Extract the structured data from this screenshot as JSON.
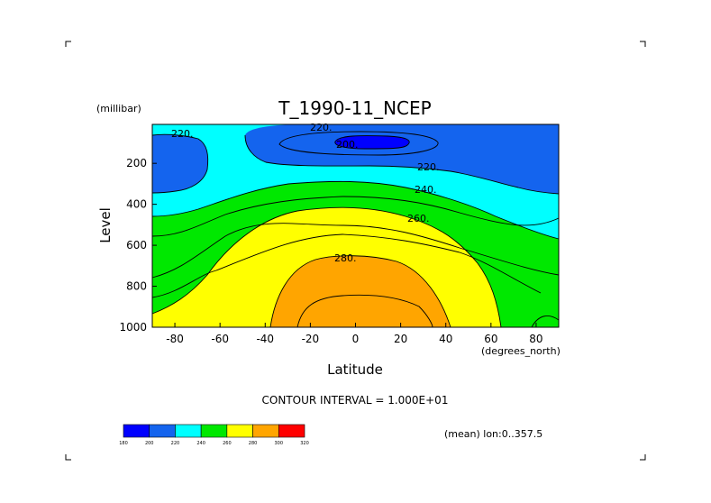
{
  "chart_data": {
    "type": "contour",
    "title": "T_1990-11_NCEP",
    "xlabel": "Latitude",
    "x_units": "(degrees_north)",
    "ylabel": "Level",
    "y_units": "(millibar)",
    "xlim": [
      -90,
      90
    ],
    "ylim": [
      1000,
      10
    ],
    "y_inverted": true,
    "x_ticks": [
      -80,
      -60,
      -40,
      -20,
      0,
      20,
      40,
      60,
      80
    ],
    "y_ticks": [
      200,
      400,
      600,
      800,
      1000
    ],
    "contour_interval": "CONTOUR INTERVAL = 1.000E+01",
    "note": "(mean) lon:0..357.5",
    "contour_labels": [
      {
        "value": "220.",
        "lat": -78,
        "level": 90
      },
      {
        "value": "220.",
        "lat": -15,
        "level": 45
      },
      {
        "value": "200.",
        "lat": -3,
        "level": 110
      },
      {
        "value": "220.",
        "lat": 33,
        "level": 250
      },
      {
        "value": "240.",
        "lat": 31,
        "level": 370
      },
      {
        "value": "260.",
        "lat": 27,
        "level": 520
      },
      {
        "value": "280.",
        "lat": -4,
        "level": 720
      }
    ],
    "legend": {
      "levels": [
        "180",
        "200",
        "220",
        "240",
        "260",
        "280",
        "300",
        "320"
      ],
      "colors": [
        "#0000ff",
        "#1464ee",
        "#00ffff",
        "#00e800",
        "#ffff00",
        "#ffa500",
        "#ff0000"
      ]
    },
    "grid": false
  }
}
